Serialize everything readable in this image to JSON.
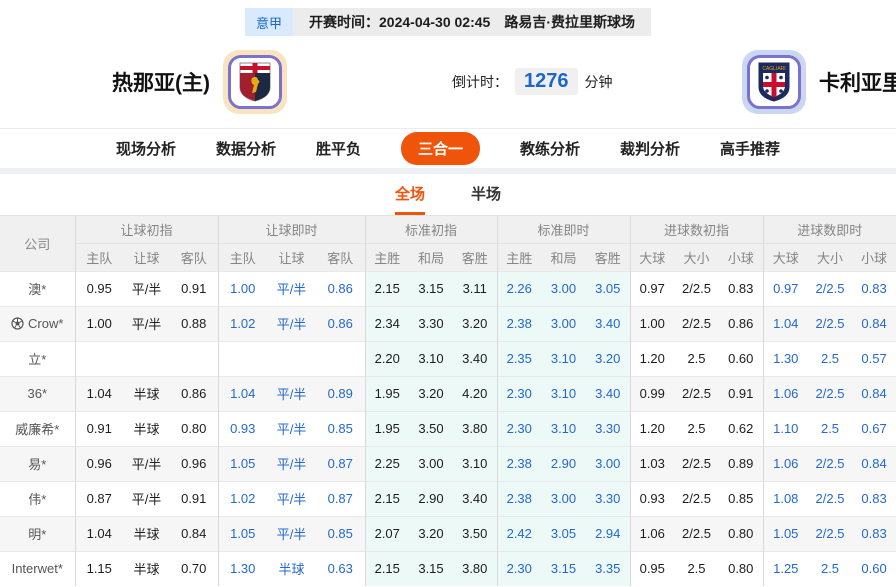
{
  "match_header": {
    "league": "意甲",
    "kickoff": "开赛时间：2024-04-30 02:45",
    "venue": "路易吉·费拉里斯球场",
    "home": {
      "name": "热那亚(主)",
      "crest": "genoa-crest"
    },
    "away": {
      "name": "卡利亚里",
      "crest": "cagliari-crest"
    },
    "countdown": {
      "label": "倒计时：",
      "value": "1276",
      "unit": "分钟"
    }
  },
  "nav": {
    "items": [
      {
        "label": "现场分析",
        "active": false
      },
      {
        "label": "数据分析",
        "active": false
      },
      {
        "label": "胜平负",
        "active": false
      },
      {
        "label": "三合一",
        "active": true
      },
      {
        "label": "教练分析",
        "active": false
      },
      {
        "label": "裁判分析",
        "active": false
      },
      {
        "label": "高手推荐",
        "active": false
      }
    ]
  },
  "subtabs": [
    {
      "label": "全场",
      "active": true
    },
    {
      "label": "半场",
      "active": false
    }
  ],
  "odds_table": {
    "company_col": "公司",
    "groups": [
      {
        "label": "让球初指",
        "cols": [
          "主队",
          "让球",
          "客队"
        ],
        "live": false,
        "tint": false
      },
      {
        "label": "让球即时",
        "cols": [
          "主队",
          "让球",
          "客队"
        ],
        "live": true,
        "tint": false
      },
      {
        "label": "标准初指",
        "cols": [
          "主胜",
          "和局",
          "客胜"
        ],
        "live": false,
        "tint": true
      },
      {
        "label": "标准即时",
        "cols": [
          "主胜",
          "和局",
          "客胜"
        ],
        "live": true,
        "tint": true
      },
      {
        "label": "进球数初指",
        "cols": [
          "大球",
          "大小",
          "小球"
        ],
        "live": false,
        "tint": false
      },
      {
        "label": "进球数即时",
        "cols": [
          "大球",
          "大小",
          "小球"
        ],
        "live": true,
        "tint": false
      }
    ],
    "rows": [
      {
        "company": "澳*",
        "ball_icon": false,
        "values": [
          "0.95",
          "平/半",
          "0.91",
          "1.00",
          "平/半",
          "0.86",
          "2.15",
          "3.15",
          "3.11",
          "2.26",
          "3.00",
          "3.05",
          "0.97",
          "2/2.5",
          "0.83",
          "0.97",
          "2/2.5",
          "0.83"
        ]
      },
      {
        "company": "Crow*",
        "ball_icon": true,
        "values": [
          "1.00",
          "平/半",
          "0.88",
          "1.02",
          "平/半",
          "0.86",
          "2.34",
          "3.30",
          "3.20",
          "2.38",
          "3.00",
          "3.40",
          "1.00",
          "2/2.5",
          "0.86",
          "1.04",
          "2/2.5",
          "0.84"
        ]
      },
      {
        "company": "立*",
        "ball_icon": false,
        "values": [
          "",
          "",
          "",
          "",
          "",
          "",
          "2.20",
          "3.10",
          "3.40",
          "2.35",
          "3.10",
          "3.20",
          "1.20",
          "2.5",
          "0.60",
          "1.30",
          "2.5",
          "0.57"
        ]
      },
      {
        "company": "36*",
        "ball_icon": false,
        "values": [
          "1.04",
          "半球",
          "0.86",
          "1.04",
          "平/半",
          "0.89",
          "1.95",
          "3.20",
          "4.20",
          "2.30",
          "3.10",
          "3.40",
          "0.99",
          "2/2.5",
          "0.91",
          "1.06",
          "2/2.5",
          "0.84"
        ]
      },
      {
        "company": "威廉希*",
        "ball_icon": false,
        "values": [
          "0.91",
          "半球",
          "0.80",
          "0.93",
          "平/半",
          "0.85",
          "1.95",
          "3.50",
          "3.80",
          "2.30",
          "3.10",
          "3.30",
          "1.20",
          "2.5",
          "0.62",
          "1.10",
          "2.5",
          "0.67"
        ]
      },
      {
        "company": "易*",
        "ball_icon": false,
        "values": [
          "0.96",
          "平/半",
          "0.96",
          "1.05",
          "平/半",
          "0.87",
          "2.25",
          "3.00",
          "3.10",
          "2.38",
          "2.90",
          "3.00",
          "1.03",
          "2/2.5",
          "0.89",
          "1.06",
          "2/2.5",
          "0.84"
        ]
      },
      {
        "company": "伟*",
        "ball_icon": false,
        "values": [
          "0.87",
          "平/半",
          "0.91",
          "1.02",
          "平/半",
          "0.87",
          "2.15",
          "2.90",
          "3.40",
          "2.38",
          "3.00",
          "3.30",
          "0.93",
          "2/2.5",
          "0.85",
          "1.08",
          "2/2.5",
          "0.83"
        ]
      },
      {
        "company": "明*",
        "ball_icon": false,
        "values": [
          "1.04",
          "半球",
          "0.84",
          "1.05",
          "平/半",
          "0.85",
          "2.07",
          "3.20",
          "3.50",
          "2.42",
          "3.05",
          "2.94",
          "1.06",
          "2/2.5",
          "0.80",
          "1.05",
          "2/2.5",
          "0.83"
        ]
      },
      {
        "company": "Interwet*",
        "ball_icon": false,
        "values": [
          "1.15",
          "半球",
          "0.70",
          "1.30",
          "半球",
          "0.63",
          "2.15",
          "3.15",
          "3.80",
          "2.30",
          "3.15",
          "3.35",
          "0.95",
          "2.5",
          "0.80",
          "1.25",
          "2.5",
          "0.60"
        ]
      }
    ]
  },
  "colors": {
    "accent_orange": "#f0540a",
    "live_blue": "#2468cd",
    "tint_cyan": "#ecf9f6",
    "league_blue": "#1a66cc"
  }
}
